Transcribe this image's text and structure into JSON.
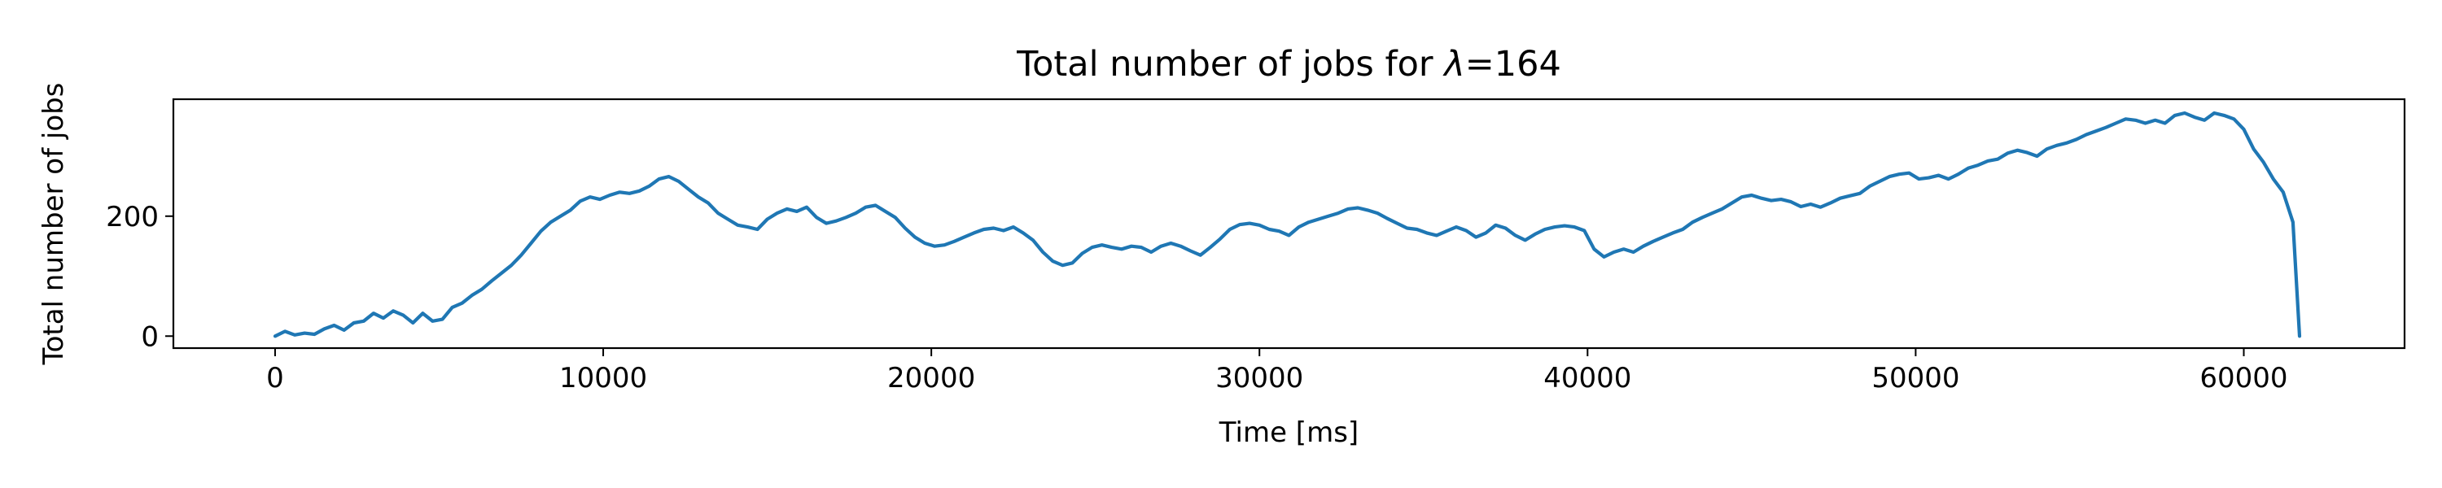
{
  "chart_data": {
    "type": "line",
    "title_prefix": "Total number of jobs for ",
    "title_symbol": "λ",
    "title_suffix": "=164",
    "xlabel": "Time [ms]",
    "ylabel": "Total number of jobs",
    "xlim": [
      -3100,
      64900
    ],
    "ylim": [
      -20,
      395
    ],
    "x_ticks": [
      0,
      10000,
      20000,
      30000,
      40000,
      50000,
      60000
    ],
    "y_ticks": [
      0,
      200
    ],
    "x_tick_labels": [
      "0",
      "10000",
      "20000",
      "30000",
      "40000",
      "50000",
      "60000"
    ],
    "y_tick_labels": [
      "0",
      "200"
    ],
    "grid": false,
    "series": [
      {
        "color": "#1f77b4",
        "x": [
          0,
          300,
          600,
          900,
          1200,
          1500,
          1800,
          2100,
          2400,
          2700,
          3000,
          3300,
          3600,
          3900,
          4200,
          4500,
          4800,
          5100,
          5400,
          5700,
          6000,
          6300,
          6600,
          6900,
          7200,
          7500,
          7800,
          8100,
          8400,
          8700,
          9000,
          9300,
          9600,
          9900,
          10200,
          10500,
          10800,
          11100,
          11400,
          11700,
          12000,
          12300,
          12600,
          12900,
          13200,
          13500,
          13800,
          14100,
          14400,
          14700,
          15000,
          15300,
          15600,
          15900,
          16200,
          16500,
          16800,
          17100,
          17400,
          17700,
          18000,
          18300,
          18600,
          18900,
          19200,
          19500,
          19800,
          20100,
          20400,
          20700,
          21000,
          21300,
          21600,
          21900,
          22200,
          22500,
          22800,
          23100,
          23400,
          23700,
          24000,
          24300,
          24600,
          24900,
          25200,
          25500,
          25800,
          26100,
          26400,
          26700,
          27000,
          27300,
          27600,
          27900,
          28200,
          28500,
          28800,
          29100,
          29400,
          29700,
          30000,
          30300,
          30600,
          30900,
          31200,
          31500,
          31800,
          32100,
          32400,
          32700,
          33000,
          33300,
          33600,
          33900,
          34200,
          34500,
          34800,
          35100,
          35400,
          35700,
          36000,
          36300,
          36600,
          36900,
          37200,
          37500,
          37800,
          38100,
          38400,
          38700,
          39000,
          39300,
          39600,
          39900,
          40200,
          40500,
          40800,
          41100,
          41400,
          41700,
          42000,
          42300,
          42600,
          42900,
          43200,
          43500,
          43800,
          44100,
          44400,
          44700,
          45000,
          45300,
          45600,
          45900,
          46200,
          46500,
          46800,
          47100,
          47400,
          47700,
          48000,
          48300,
          48600,
          48900,
          49200,
          49500,
          49800,
          50100,
          50400,
          50700,
          51000,
          51300,
          51600,
          51900,
          52200,
          52500,
          52800,
          53100,
          53400,
          53700,
          54000,
          54300,
          54600,
          54900,
          55200,
          55500,
          55800,
          56100,
          56400,
          56700,
          57000,
          57300,
          57600,
          57900,
          58200,
          58500,
          58800,
          59100,
          59400,
          59700,
          60000,
          60300,
          60600,
          60900,
          61200,
          61500,
          61700
        ],
        "y": [
          0,
          8,
          2,
          5,
          3,
          12,
          18,
          10,
          22,
          25,
          38,
          30,
          42,
          35,
          22,
          38,
          25,
          28,
          48,
          55,
          68,
          78,
          92,
          105,
          118,
          135,
          155,
          175,
          190,
          200,
          210,
          225,
          232,
          228,
          235,
          240,
          238,
          242,
          250,
          262,
          266,
          258,
          245,
          232,
          222,
          205,
          195,
          185,
          182,
          178,
          195,
          205,
          212,
          208,
          215,
          198,
          188,
          192,
          198,
          205,
          215,
          218,
          208,
          198,
          180,
          165,
          155,
          150,
          152,
          158,
          165,
          172,
          178,
          180,
          176,
          182,
          172,
          160,
          140,
          125,
          118,
          122,
          138,
          148,
          152,
          148,
          145,
          150,
          148,
          140,
          150,
          155,
          150,
          142,
          135,
          148,
          162,
          178,
          186,
          188,
          185,
          178,
          175,
          168,
          182,
          190,
          195,
          200,
          205,
          212,
          214,
          210,
          205,
          196,
          188,
          180,
          178,
          172,
          168,
          175,
          182,
          176,
          165,
          172,
          185,
          180,
          168,
          160,
          170,
          178,
          182,
          184,
          182,
          176,
          145,
          132,
          140,
          145,
          140,
          150,
          158,
          165,
          172,
          178,
          190,
          198,
          205,
          212,
          222,
          232,
          235,
          230,
          226,
          228,
          224,
          216,
          220,
          215,
          222,
          230,
          234,
          238,
          250,
          258,
          266,
          270,
          272,
          262,
          264,
          268,
          262,
          270,
          280,
          285,
          292,
          295,
          305,
          310,
          306,
          300,
          312,
          318,
          322,
          328,
          336,
          342,
          348,
          355,
          362,
          360,
          355,
          360,
          355,
          368,
          372,
          365,
          360,
          372,
          368,
          362,
          345,
          312,
          290,
          262,
          240,
          190,
          0
        ]
      }
    ]
  }
}
